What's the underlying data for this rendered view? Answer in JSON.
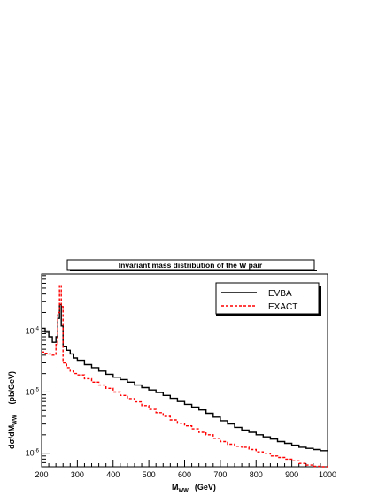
{
  "chart_data": {
    "type": "line",
    "title": "Invariant mass distribution of the W pair",
    "xlabel": "M",
    "xlabel_sub": "WW",
    "xlabel_unit": "(GeV)",
    "ylabel_prefix": "dσ/dM",
    "ylabel_sub": "WW",
    "ylabel_unit": "(pb/GeV)",
    "xlim": [
      200,
      1000
    ],
    "ylim": [
      6e-07,
      0.00085
    ],
    "log_y": true,
    "grid": false,
    "legend_position": "top-right",
    "x_ticks": [
      200,
      300,
      400,
      500,
      600,
      700,
      800,
      900,
      1000
    ],
    "y_ticks": [
      {
        "value": 0.0001,
        "base": "10",
        "exp": "-4"
      },
      {
        "value": 1e-05,
        "base": "10",
        "exp": "-5"
      },
      {
        "value": 1e-06,
        "base": "10",
        "exp": "-6"
      }
    ],
    "series": [
      {
        "name": "EVBA",
        "color": "#000000",
        "style": "solid",
        "x": [
          200,
          210,
          220,
          230,
          240,
          245,
          250,
          255,
          260,
          270,
          280,
          290,
          300,
          320,
          340,
          360,
          380,
          400,
          420,
          440,
          460,
          480,
          500,
          520,
          540,
          560,
          580,
          600,
          620,
          640,
          660,
          680,
          700,
          720,
          740,
          760,
          780,
          800,
          820,
          840,
          860,
          880,
          900,
          920,
          940,
          960,
          980,
          1000
        ],
        "y": [
          0.00011,
          9.5e-05,
          8e-05,
          6.5e-05,
          8e-05,
          0.00016,
          0.00027,
          0.00012,
          5.6e-05,
          4.8e-05,
          4.2e-05,
          3.6e-05,
          3.3e-05,
          2.8e-05,
          2.5e-05,
          2.2e-05,
          1.95e-05,
          1.75e-05,
          1.6e-05,
          1.45e-05,
          1.3e-05,
          1.18e-05,
          1.08e-05,
          9.8e-06,
          8.8e-06,
          7.9e-06,
          7e-06,
          6.3e-06,
          5.7e-06,
          5.1e-06,
          4.5e-06,
          3.9e-06,
          3.4e-06,
          3e-06,
          2.65e-06,
          2.4e-06,
          2.2e-06,
          2e-06,
          1.85e-06,
          1.7e-06,
          1.55e-06,
          1.45e-06,
          1.35e-06,
          1.25e-06,
          1.2e-06,
          1.15e-06,
          1.1e-06,
          1.1e-06
        ]
      },
      {
        "name": "EXACT",
        "color": "#ff0000",
        "style": "dashed",
        "x": [
          200,
          210,
          220,
          230,
          240,
          245,
          250,
          255,
          260,
          270,
          280,
          290,
          300,
          320,
          340,
          360,
          380,
          400,
          420,
          440,
          460,
          480,
          500,
          520,
          540,
          560,
          580,
          600,
          620,
          640,
          660,
          680,
          700,
          720,
          740,
          760,
          780,
          800,
          820,
          840,
          860,
          880,
          900,
          920,
          940,
          960,
          980,
          1000
        ],
        "y": [
          4.5e-05,
          4.3e-05,
          4.2e-05,
          4e-05,
          6e-05,
          0.0002,
          0.00056,
          0.00025,
          3e-05,
          2.5e-05,
          2.2e-05,
          2e-05,
          1.9e-05,
          1.65e-05,
          1.45e-05,
          1.3e-05,
          1.15e-05,
          1e-05,
          8.8e-06,
          7.8e-06,
          6.9e-06,
          6e-06,
          5.2e-06,
          4.6e-06,
          4e-06,
          3.5e-06,
          3.1e-06,
          2.8e-06,
          2.5e-06,
          2.2e-06,
          2e-06,
          1.75e-06,
          1.55e-06,
          1.4e-06,
          1.3e-06,
          1.25e-06,
          1.15e-06,
          1.05e-06,
          1e-06,
          9e-07,
          8.5e-07,
          8e-07,
          7.5e-07,
          6.8e-07,
          6.4e-07,
          6.1e-07,
          6e-07,
          6e-07
        ]
      }
    ]
  }
}
